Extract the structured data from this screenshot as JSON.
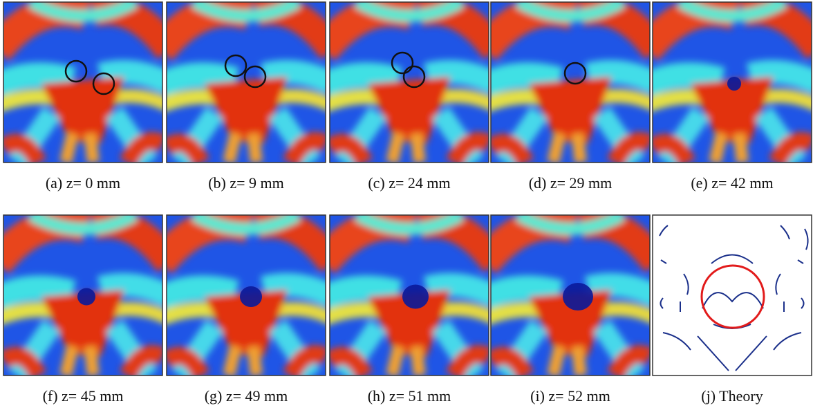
{
  "panels": [
    {
      "caption": "(a) z= 0 mm"
    },
    {
      "caption": "(b) z= 9 mm"
    },
    {
      "caption": "(c) z= 24 mm"
    },
    {
      "caption": "(d) z= 29 mm"
    },
    {
      "caption": "(e) z= 42 mm"
    },
    {
      "caption": "(f) z= 45 mm"
    },
    {
      "caption": "(g) z= 49 mm"
    },
    {
      "caption": "(h) z= 51 mm"
    },
    {
      "caption": "(i) z= 52 mm"
    },
    {
      "caption": "(j) Theory"
    }
  ]
}
